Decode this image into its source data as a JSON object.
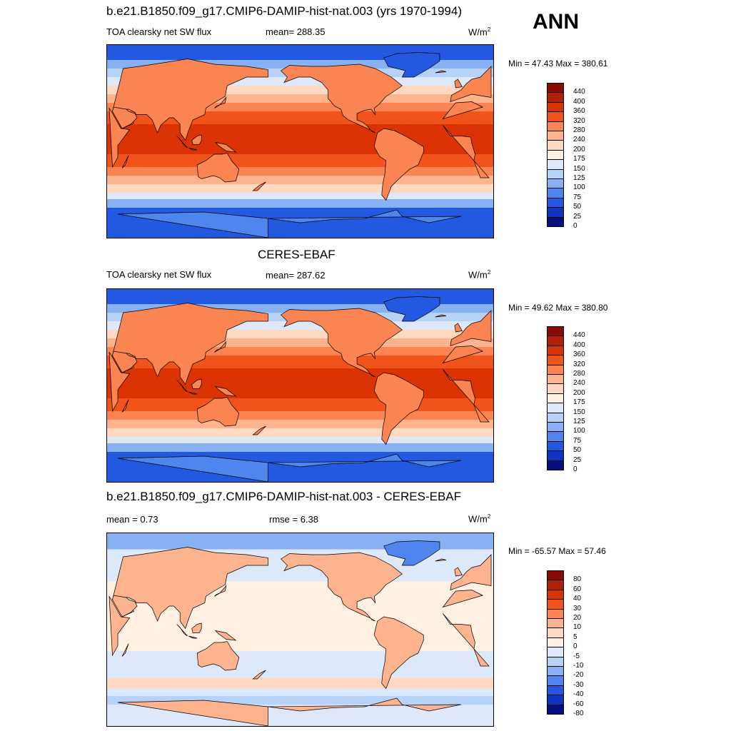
{
  "season": "ANN",
  "panels": [
    {
      "title": "b.e21.B1850.f09_g17.CMIP6-DAMIP-hist-nat.003 (yrs 1970-1994)",
      "variable": "TOA clearsky net SW flux",
      "stat1": "mean= 288.35",
      "stat2": "",
      "units": "W/m",
      "units_sup": "2",
      "minmax": "Min =  47.43 Max = 380.61",
      "colorbar_labels": [
        "440",
        "400",
        "360",
        "320",
        "280",
        "240",
        "200",
        "175",
        "150",
        "125",
        "100",
        "75",
        "50",
        "25",
        "0"
      ],
      "colorbar_colors": [
        "#8b0a04",
        "#b31e06",
        "#dc3305",
        "#f0541b",
        "#fb8552",
        "#fcb38e",
        "#fed9c1",
        "#fff0e2",
        "#dde9fb",
        "#b7d2f7",
        "#87b1f2",
        "#4f86ed",
        "#2358e0",
        "#1034c0",
        "#050f80"
      ],
      "palette": "sequential"
    },
    {
      "title": "CERES-EBAF",
      "variable": "TOA clearsky net SW flux",
      "stat1": "mean= 287.62",
      "stat2": "",
      "units": "W/m",
      "units_sup": "2",
      "minmax": "Min =  49.62 Max = 380.80",
      "colorbar_labels": [
        "440",
        "400",
        "360",
        "320",
        "280",
        "240",
        "200",
        "175",
        "150",
        "125",
        "100",
        "75",
        "50",
        "25",
        "0"
      ],
      "colorbar_colors": [
        "#8b0a04",
        "#b31e06",
        "#dc3305",
        "#f0541b",
        "#fb8552",
        "#fcb38e",
        "#fed9c1",
        "#fff0e2",
        "#dde9fb",
        "#b7d2f7",
        "#87b1f2",
        "#4f86ed",
        "#2358e0",
        "#1034c0",
        "#050f80"
      ],
      "palette": "sequential"
    },
    {
      "title": "b.e21.B1850.f09_g17.CMIP6-DAMIP-hist-nat.003 - CERES-EBAF",
      "variable": "",
      "stat1": "mean =   0.73",
      "stat2": "rmse =   6.38",
      "units": "W/m",
      "units_sup": "2",
      "minmax": "Min = -65.57 Max =  57.46",
      "colorbar_labels": [
        "80",
        "60",
        "40",
        "30",
        "20",
        "10",
        "5",
        "0",
        "-5",
        "-10",
        "-20",
        "-30",
        "-40",
        "-60",
        "-80"
      ],
      "colorbar_colors": [
        "#8b0a04",
        "#b31e06",
        "#dc3305",
        "#f0541b",
        "#fb8552",
        "#fcb38e",
        "#fed9c1",
        "#fff0e2",
        "#dde9fb",
        "#b7d2f7",
        "#87b1f2",
        "#4f86ed",
        "#2358e0",
        "#1034c0",
        "#050f80"
      ],
      "palette": "diverging"
    }
  ]
}
